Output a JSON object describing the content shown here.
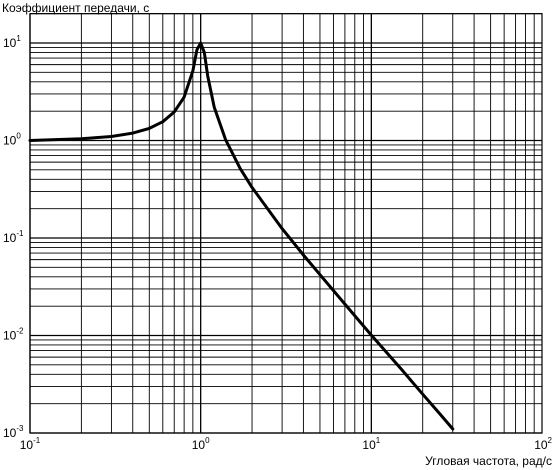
{
  "chart_data": {
    "type": "line",
    "title": "",
    "ylabel": "Коэффициент передачи, с",
    "xlabel": "Угловая частота, рад/с",
    "x_scale": "log",
    "y_scale": "log",
    "xlim": [
      0.1,
      100
    ],
    "ylim": [
      0.001,
      20
    ],
    "grid": true,
    "legend": "none",
    "x_ticks": [
      {
        "base": "10",
        "exp": "-1"
      },
      {
        "base": "10",
        "exp": "0"
      },
      {
        "base": "10",
        "exp": "1"
      },
      {
        "base": "10",
        "exp": "2"
      }
    ],
    "y_ticks": [
      {
        "base": "10",
        "exp": "-3"
      },
      {
        "base": "10",
        "exp": "-2"
      },
      {
        "base": "10",
        "exp": "-1"
      },
      {
        "base": "10",
        "exp": "0"
      },
      {
        "base": "10",
        "exp": "1"
      }
    ],
    "series": [
      {
        "x": [
          0.1,
          0.2,
          0.3,
          0.4,
          0.5,
          0.6,
          0.7,
          0.8,
          0.9,
          0.95,
          1.0,
          1.05,
          1.1,
          1.2,
          1.4,
          1.7,
          2,
          3,
          4,
          5,
          7,
          10,
          15,
          20,
          25,
          30
        ],
        "y": [
          1.0,
          1.04,
          1.1,
          1.19,
          1.33,
          1.56,
          1.96,
          2.78,
          5.2,
          8.5,
          10,
          8.0,
          4.6,
          2.2,
          1.02,
          0.52,
          0.33,
          0.125,
          0.067,
          0.042,
          0.021,
          0.0101,
          0.0045,
          0.0025,
          0.0016,
          0.0011
        ]
      }
    ]
  }
}
